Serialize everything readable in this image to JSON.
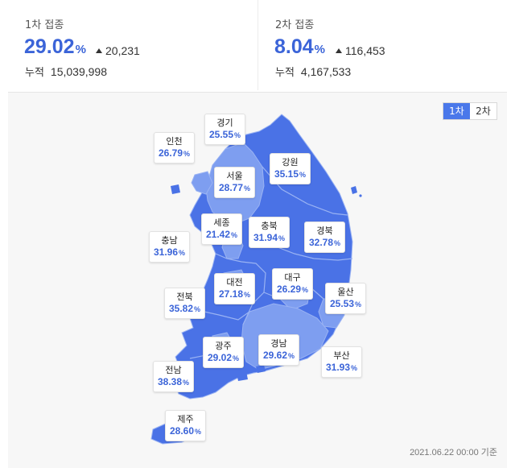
{
  "first_dose": {
    "title": "1차 접종",
    "percent": "29.02",
    "unit": "%",
    "delta": "20,231",
    "cum_label": "누적",
    "cum_value": "15,039,998"
  },
  "second_dose": {
    "title": "2차 접종",
    "percent": "8.04",
    "unit": "%",
    "delta": "116,453",
    "cum_label": "누적",
    "cum_value": "4,167,533"
  },
  "map": {
    "toggle": [
      {
        "label": "1차",
        "active": true
      },
      {
        "label": "2차",
        "active": false
      }
    ],
    "date_note": "2021.06.22 00:00 기준",
    "colors": {
      "dark": "#4a72e6",
      "light": "#7e9ef0",
      "border": "#9ab3f3",
      "accent": "#3b64d8"
    },
    "regions": [
      {
        "name": "경기",
        "value": "25.55"
      },
      {
        "name": "인천",
        "value": "26.79"
      },
      {
        "name": "강원",
        "value": "35.15"
      },
      {
        "name": "서울",
        "value": "28.77"
      },
      {
        "name": "세종",
        "value": "21.42"
      },
      {
        "name": "충북",
        "value": "31.94"
      },
      {
        "name": "경북",
        "value": "32.78"
      },
      {
        "name": "충남",
        "value": "31.96"
      },
      {
        "name": "대전",
        "value": "27.18"
      },
      {
        "name": "대구",
        "value": "26.29"
      },
      {
        "name": "전북",
        "value": "35.82"
      },
      {
        "name": "울산",
        "value": "25.53"
      },
      {
        "name": "광주",
        "value": "29.02"
      },
      {
        "name": "경남",
        "value": "29.62"
      },
      {
        "name": "부산",
        "value": "31.93"
      },
      {
        "name": "전남",
        "value": "38.38"
      },
      {
        "name": "제주",
        "value": "28.60"
      }
    ]
  }
}
